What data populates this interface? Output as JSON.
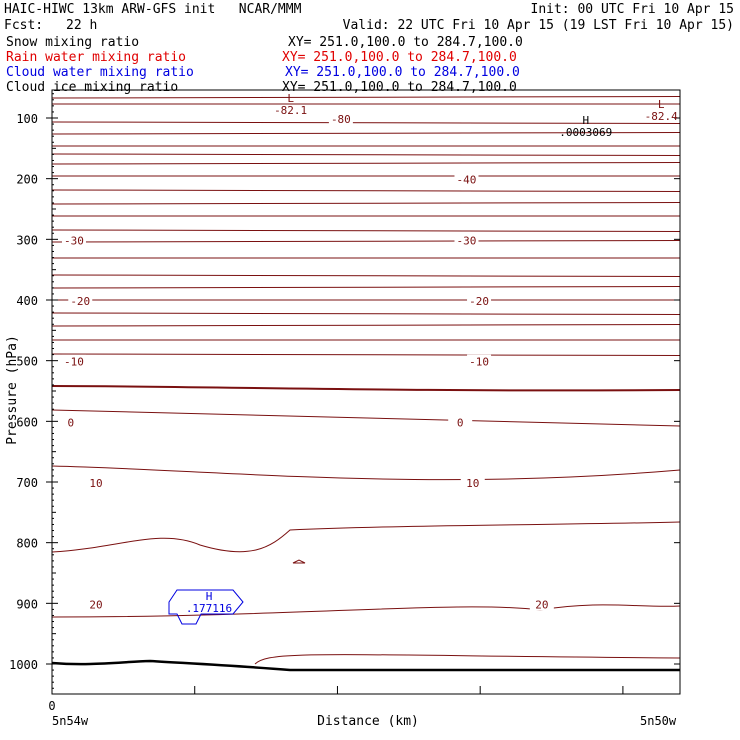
{
  "header": {
    "left1": "HAIC-HIWC 13km ARW-GFS init   NCAR/MMM",
    "right1": "Init: 00 UTC Fri 10 Apr 15",
    "fcst_label": "Fcst:",
    "fcst_value": "22 h",
    "valid": "Valid: 22 UTC Fri 10 Apr 15 (19 LST Fri 10 Apr 15)"
  },
  "fields": [
    {
      "name": "Snow mixing ratio",
      "xy": "XY= 251.0,100.0 to 284.7,100.0",
      "color": "#000000"
    },
    {
      "name": "Rain water mixing ratio",
      "xy": "XY= 251.0,100.0 to 284.7,100.0",
      "color": "#e00000"
    },
    {
      "name": "Cloud water mixing ratio",
      "xy": "XY= 251.0,100.0 to 284.7,100.0",
      "color": "#0000e0"
    },
    {
      "name": "Cloud ice mixing ratio",
      "xy": "XY= 251.0,100.0 to 284.7,100.0",
      "color": "#000000"
    }
  ],
  "chart_data": {
    "type": "line",
    "ylabel": "Pressure (hPa)",
    "xlabel": "Distance (km)",
    "y_ticks": [
      100,
      200,
      300,
      400,
      500,
      600,
      700,
      800,
      900,
      1000
    ],
    "x_tick_zero": "0",
    "x_left_label": "5n54w",
    "x_right_label": "5n50w",
    "temperature_labels": [
      {
        "text": "-30",
        "x": 0.035,
        "p": 300
      },
      {
        "text": "-20",
        "x": 0.045,
        "p": 400
      },
      {
        "text": "-10",
        "x": 0.035,
        "p": 500
      },
      {
        "text": "0",
        "x": 0.03,
        "p": 600
      },
      {
        "text": "10",
        "x": 0.07,
        "p": 700
      },
      {
        "text": "20",
        "x": 0.07,
        "p": 900
      },
      {
        "text": "-80",
        "x": 0.46,
        "p": 100
      },
      {
        "text": "-40",
        "x": 0.66,
        "p": 200
      },
      {
        "text": "-30",
        "x": 0.66,
        "p": 300
      },
      {
        "text": "-20",
        "x": 0.68,
        "p": 400
      },
      {
        "text": "-10",
        "x": 0.68,
        "p": 500
      },
      {
        "text": "0",
        "x": 0.65,
        "p": 600
      },
      {
        "text": "10",
        "x": 0.67,
        "p": 700
      },
      {
        "text": "20",
        "x": 0.78,
        "p": 900
      }
    ],
    "extrema": [
      {
        "type": "L",
        "value": "-82.1",
        "x": 0.38,
        "color": "#7a1010"
      },
      {
        "type": "L",
        "value": "-82.4",
        "x": 0.97,
        "color": "#7a1010"
      },
      {
        "type": "H",
        "value": ".0003069",
        "x": 0.85,
        "color": "#000000"
      },
      {
        "type": "H",
        "value": ".177116",
        "x": 0.25,
        "color": "#0000e0"
      }
    ],
    "colors": {
      "isotherm": "#7a1010",
      "frame": "#000000",
      "terrain": "#000000"
    }
  }
}
